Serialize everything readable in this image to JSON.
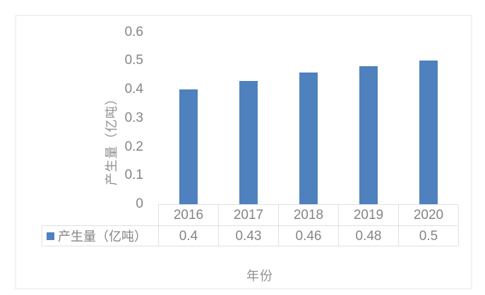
{
  "chart_data": {
    "type": "bar",
    "title": "",
    "categories": [
      "2016",
      "2017",
      "2018",
      "2019",
      "2020"
    ],
    "series": [
      {
        "name": "产生量（亿吨）",
        "values": [
          0.4,
          0.43,
          0.46,
          0.48,
          0.5
        ]
      }
    ],
    "xlabel": "年份",
    "ylabel": "产生量（亿吨）",
    "ylim": [
      0,
      0.6
    ],
    "y_ticks": [
      0,
      0.1,
      0.2,
      0.3,
      0.4,
      0.5,
      0.6
    ],
    "grid": false,
    "legend_position": "data-table-row-header",
    "data_table_shown": true,
    "bar_color": "#4E81BD",
    "text_color": "#848484",
    "axis_title_color": "#909090",
    "table_border_color": "#E0E0E0",
    "card_border_color": "#F2F2F2"
  }
}
